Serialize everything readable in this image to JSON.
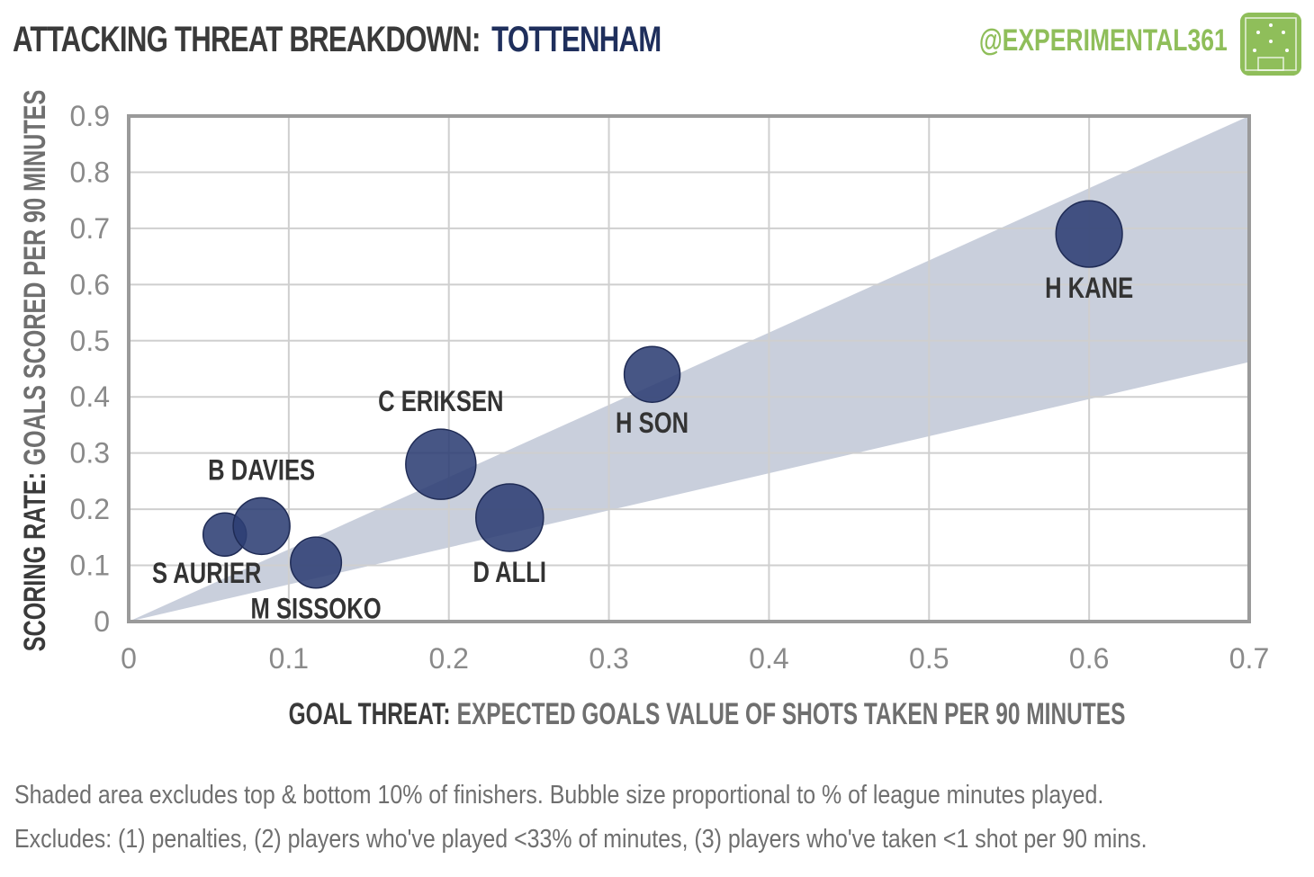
{
  "header": {
    "title": "ATTACKING THREAT BREAKDOWN:",
    "team": "TOTTENHAM",
    "handle": "@EXPERIMENTAL361"
  },
  "colors": {
    "bubble": "#2e3f74",
    "band": "#c9cfdc",
    "handle": "#8fbe5a",
    "team": "#1f2f5c"
  },
  "chart_data": {
    "type": "scatter",
    "xlabel_bold": "GOAL THREAT:",
    "xlabel_rest": "EXPECTED GOALS VALUE OF SHOTS TAKEN PER 90 MINUTES",
    "ylabel_bold": "SCORING RATE:",
    "ylabel_rest": "GOALS SCORED PER 90 MINUTES",
    "xlim": [
      0,
      0.7
    ],
    "ylim": [
      0,
      0.9
    ],
    "x_ticks": [
      "0",
      "0.1",
      "0.2",
      "0.3",
      "0.4",
      "0.5",
      "0.6",
      "0.7"
    ],
    "y_ticks": [
      "0",
      "0.1",
      "0.2",
      "0.3",
      "0.4",
      "0.5",
      "0.6",
      "0.7",
      "0.8",
      "0.9"
    ],
    "grid": true,
    "band": {
      "upper_slope": 1.286,
      "lower_slope": 0.66
    },
    "points": [
      {
        "name": "S AURIER",
        "x": 0.06,
        "y": 0.155,
        "minutes_share": 0.36
      },
      {
        "name": "B DAVIES",
        "x": 0.083,
        "y": 0.17,
        "minutes_share": 0.62
      },
      {
        "name": "M SISSOKO",
        "x": 0.117,
        "y": 0.105,
        "minutes_share": 0.5
      },
      {
        "name": "C ERIKSEN",
        "x": 0.195,
        "y": 0.28,
        "minutes_share": 0.95
      },
      {
        "name": "D ALLI",
        "x": 0.238,
        "y": 0.185,
        "minutes_share": 0.88
      },
      {
        "name": "H SON",
        "x": 0.327,
        "y": 0.44,
        "minutes_share": 0.6
      },
      {
        "name": "H KANE",
        "x": 0.6,
        "y": 0.69,
        "minutes_share": 0.85
      }
    ]
  },
  "footnotes": {
    "line1": "Shaded area excludes top & bottom  10% of finishers. Bubble size proportional to % of league minutes played.",
    "line2": "Excludes: (1) penalties, (2) players who've played <33% of minutes, (3) players who've taken <1 shot per 90 mins."
  }
}
